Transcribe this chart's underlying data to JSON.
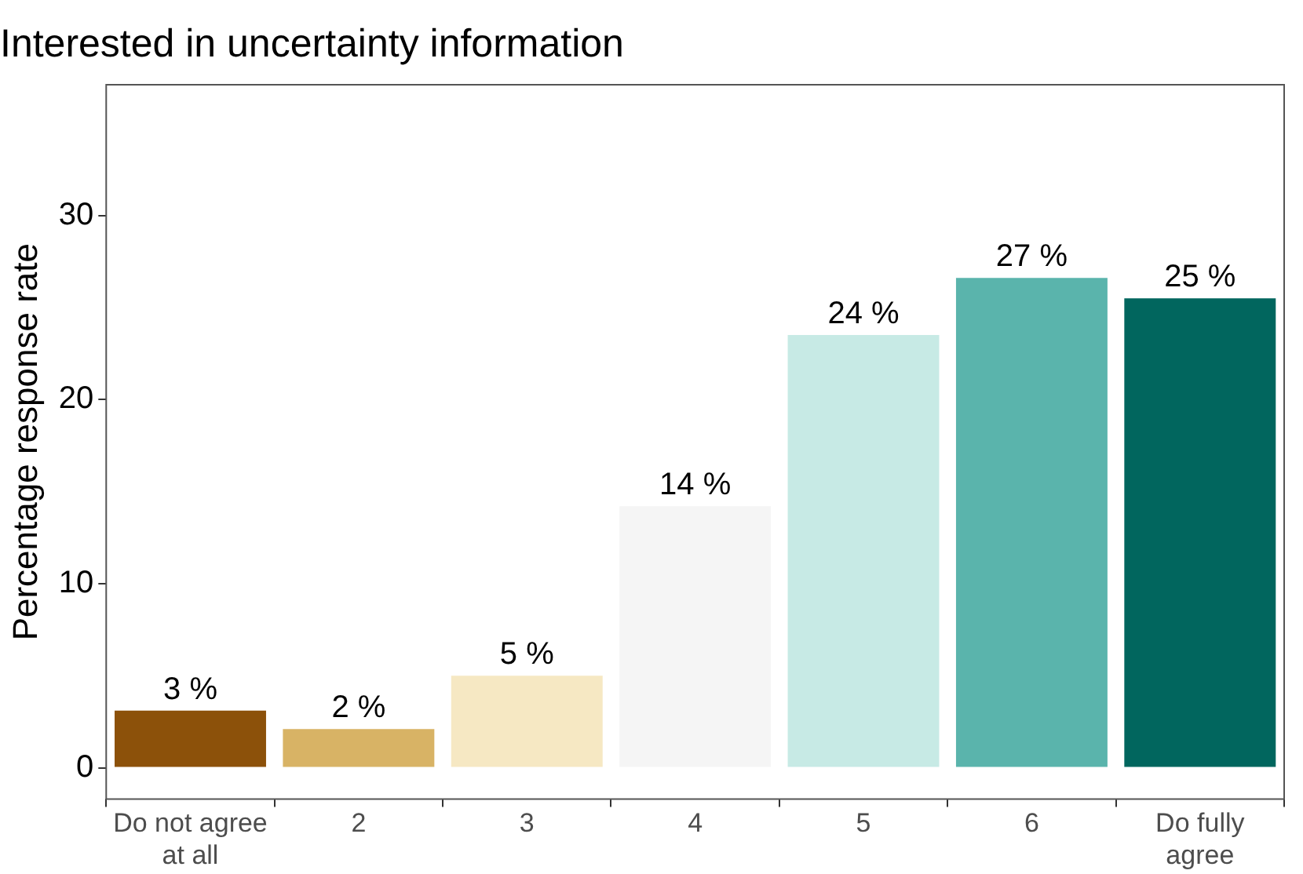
{
  "chart_data": {
    "type": "bar",
    "title": "Interested in uncertainty information",
    "ylabel": "Percentage response rate",
    "categories": [
      "Do not agree at all",
      "2",
      "3",
      "4",
      "5",
      "6",
      "Do fully agree"
    ],
    "values": [
      3.1,
      2.1,
      5.0,
      14.2,
      23.5,
      26.6,
      25.5
    ],
    "colors": [
      "#8c510a",
      "#d8b365",
      "#f6e8c3",
      "#f5f5f5",
      "#c7eae5",
      "#5ab4ac",
      "#01665e"
    ],
    "value_labels": [
      "3 %",
      "2 %",
      "5 %",
      "14 %",
      "24 %",
      "27 %",
      "25 %"
    ],
    "ylim": [
      -1.7,
      37.1
    ],
    "yticks": [
      0,
      10,
      20,
      30
    ]
  }
}
